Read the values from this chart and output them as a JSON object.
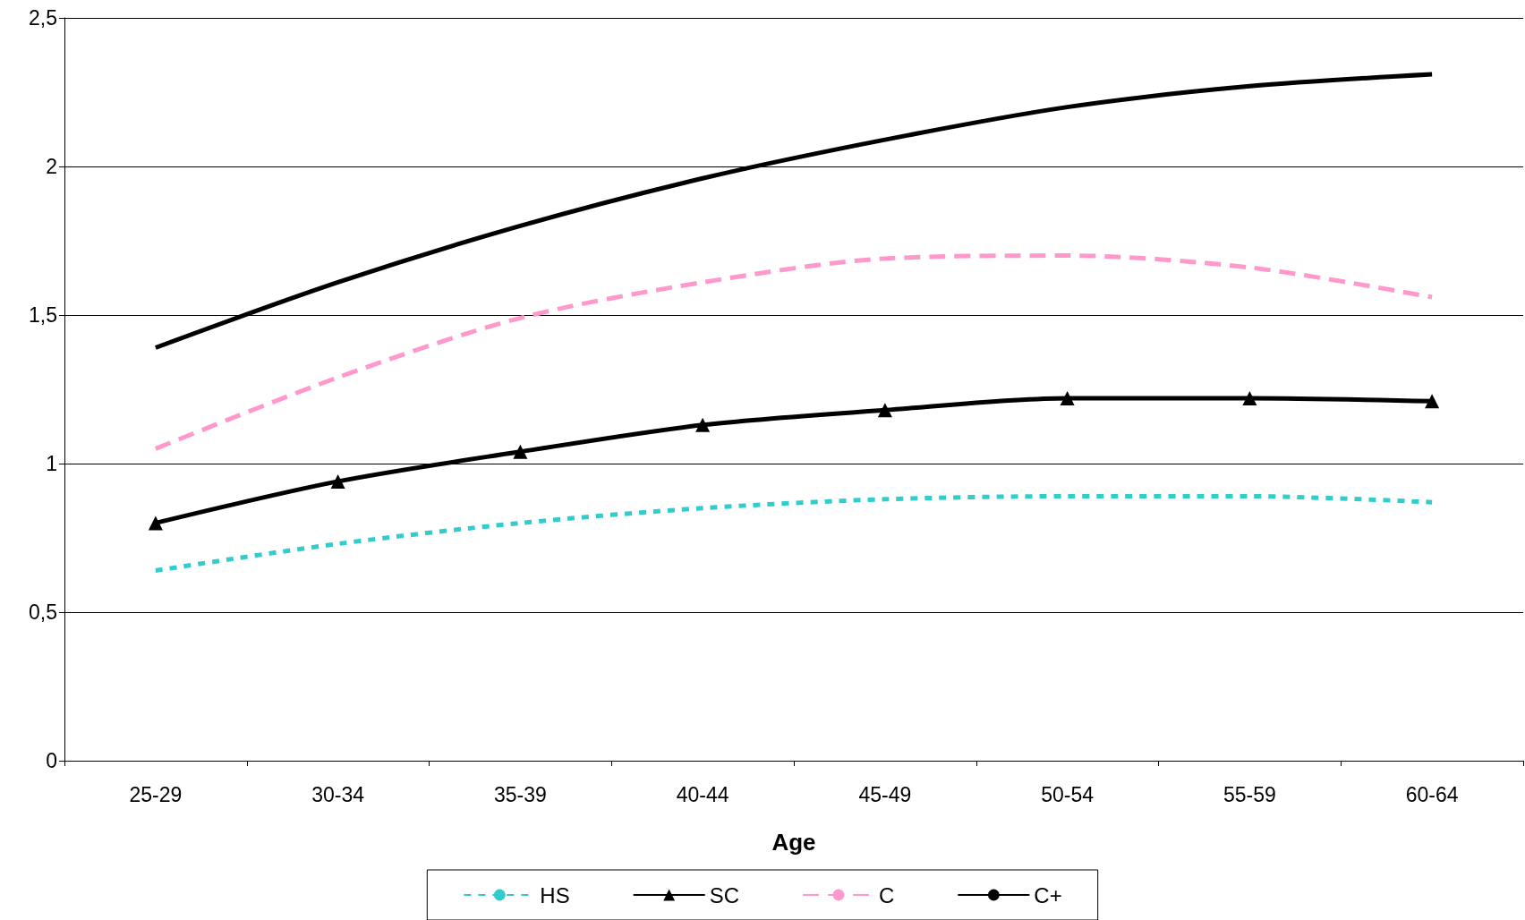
{
  "chart_data": {
    "type": "line",
    "xlabel": "Age",
    "categories": [
      "25-29",
      "30-34",
      "35-39",
      "40-44",
      "45-49",
      "50-54",
      "55-59",
      "60-64"
    ],
    "ylim": [
      0,
      2.5
    ],
    "yticks": [
      0,
      {
        "value": 0.5,
        "label": "0,5"
      },
      1,
      {
        "value": 1.5,
        "label": "1,5"
      },
      2,
      {
        "value": 2.5,
        "label": "2,5"
      }
    ],
    "grid": "y",
    "legend": "bottom",
    "series": [
      {
        "name": "HS",
        "color": "#33cccc",
        "line_style": "dotted",
        "marker": "none",
        "values": [
          0.64,
          0.73,
          0.8,
          0.85,
          0.88,
          0.89,
          0.89,
          0.87
        ]
      },
      {
        "name": "SC",
        "color": "#000000",
        "line_style": "solid",
        "marker": "triangle",
        "values": [
          0.8,
          0.94,
          1.04,
          1.13,
          1.18,
          1.22,
          1.22,
          1.21
        ]
      },
      {
        "name": "C",
        "color": "#ff99cc",
        "line_style": "dashed",
        "marker": "none",
        "values": [
          1.05,
          1.29,
          1.49,
          1.61,
          1.69,
          1.7,
          1.66,
          1.56
        ]
      },
      {
        "name": "C+",
        "color": "#000000",
        "line_style": "solid",
        "marker": "none",
        "values": [
          1.39,
          1.61,
          1.8,
          1.96,
          2.09,
          2.2,
          2.27,
          2.31
        ]
      }
    ]
  }
}
